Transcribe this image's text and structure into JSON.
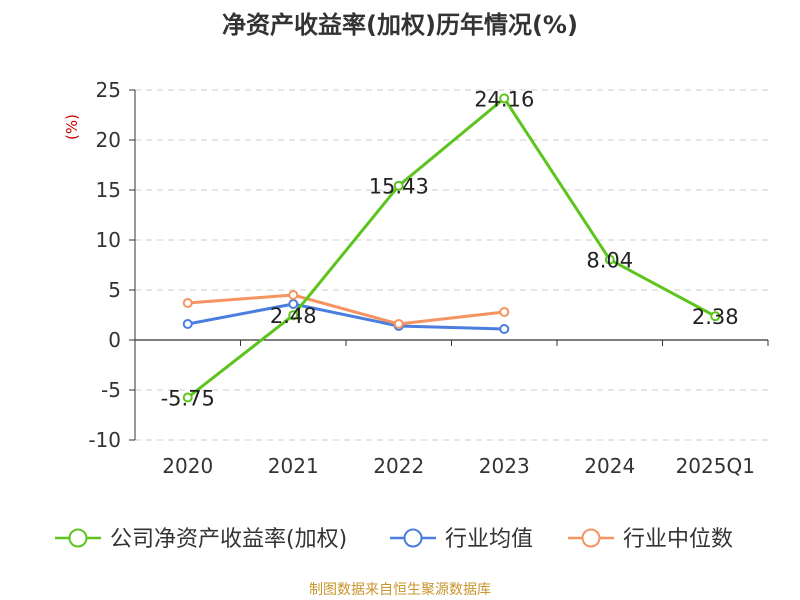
{
  "chart_data": {
    "type": "line",
    "title": "净资产收益率(加权)历年情况(%)",
    "ylabel": "(%)",
    "categories": [
      "2020",
      "2021",
      "2022",
      "2023",
      "2024",
      "2025Q1"
    ],
    "ylim": [
      -10,
      25
    ],
    "yticks": [
      -10,
      -5,
      0,
      5,
      10,
      15,
      20,
      25
    ],
    "grid": true,
    "legend_position": "bottom",
    "series": [
      {
        "name": "公司净资产收益率(加权)",
        "color": "#5cc41c",
        "values": [
          -5.75,
          2.48,
          15.43,
          24.16,
          8.04,
          2.38
        ],
        "labels": [
          "-5.75",
          "2.48",
          "15.43",
          "24.16",
          "8.04",
          "2.38"
        ]
      },
      {
        "name": "行业均值",
        "color": "#4a7de0",
        "values": [
          1.6,
          3.6,
          1.4,
          1.1,
          null,
          null
        ]
      },
      {
        "name": "行业中位数",
        "color": "#f59460",
        "values": [
          3.7,
          4.5,
          1.6,
          2.8,
          null,
          null
        ]
      }
    ],
    "source": "制图数据来自恒生聚源数据库"
  }
}
